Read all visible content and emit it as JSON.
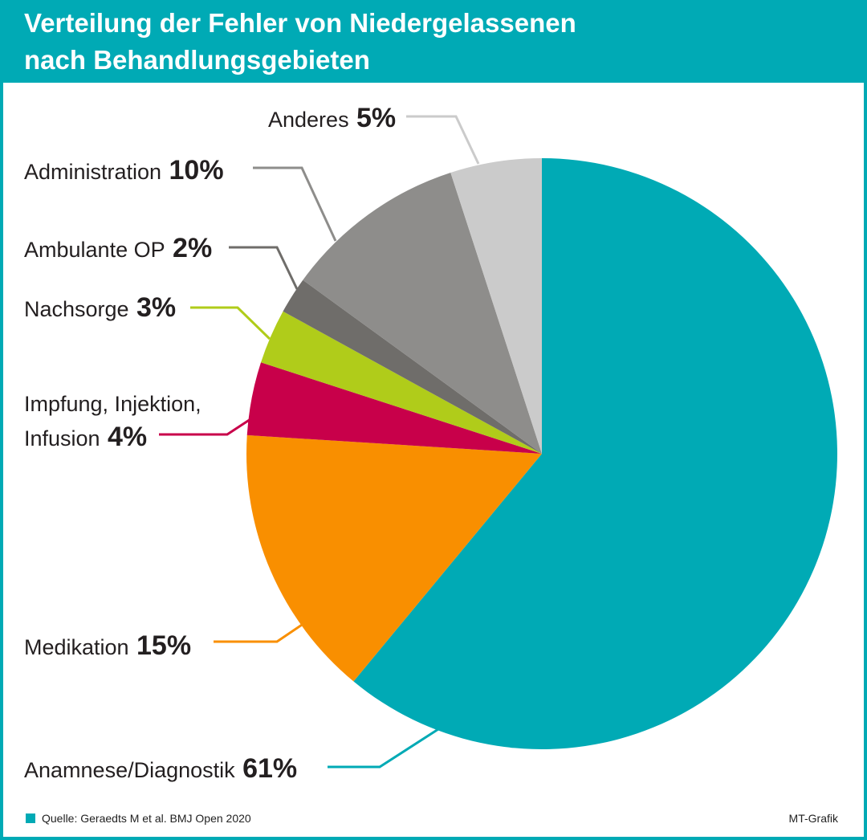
{
  "title_line1": "Verteilung der Fehler von Niedergelassenen",
  "title_line2": "nach Behandlungsgebieten",
  "source": "Quelle: Geraedts M et al. BMJ Open 2020",
  "credit": "MT-Grafik",
  "colors": {
    "accent": "#00aab5"
  },
  "chart_data": {
    "type": "pie",
    "start": "12 o'clock",
    "direction": "clockwise",
    "slices": [
      {
        "label": "Anamnese/Diagnostik",
        "value": 61,
        "value_label": "61%",
        "color": "#00aab5"
      },
      {
        "label": "Medikation",
        "value": 15,
        "value_label": "15%",
        "color": "#f98f00"
      },
      {
        "label": "Impfung, Injektion, Infusion",
        "label_lines": [
          "Impfung, Injektion,",
          "Infusion"
        ],
        "value": 4,
        "value_label": "4%",
        "color": "#c8004a"
      },
      {
        "label": "Nachsorge",
        "value": 3,
        "value_label": "3%",
        "color": "#b0cc1a"
      },
      {
        "label": "Ambulante OP",
        "value": 2,
        "value_label": "2%",
        "color": "#6f6d6a"
      },
      {
        "label": "Administration",
        "value": 10,
        "value_label": "10%",
        "color": "#8e8d8b"
      },
      {
        "label": "Anderes",
        "value": 5,
        "value_label": "5%",
        "color": "#cbcbcb"
      }
    ]
  }
}
